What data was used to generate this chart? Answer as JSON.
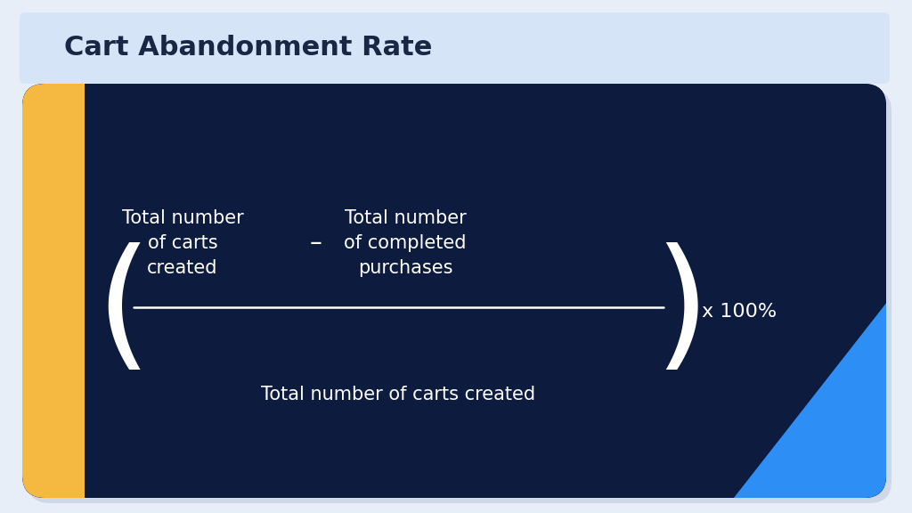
{
  "title": "Cart Abandonment Rate",
  "title_fontsize": 22,
  "title_color": "#1a2744",
  "title_bg_color": "#d6e4f7",
  "bg_color": "#e8eef7",
  "card_bg_color": "#0d1b3e",
  "gold_accent_color": "#f5b942",
  "blue_accent_color": "#2d8ef5",
  "numerator_left": "Total number\nof carts\ncreated",
  "minus_sign": "–",
  "numerator_right": "Total number\nof completed\npurchases",
  "denominator": "Total number of carts created",
  "multiplier": "x 100%",
  "formula_text_color": "#ffffff",
  "formula_text_fontsize": 15,
  "multiplier_fontsize": 16,
  "line_color": "#ffffff",
  "bracket_color": "#ffffff"
}
